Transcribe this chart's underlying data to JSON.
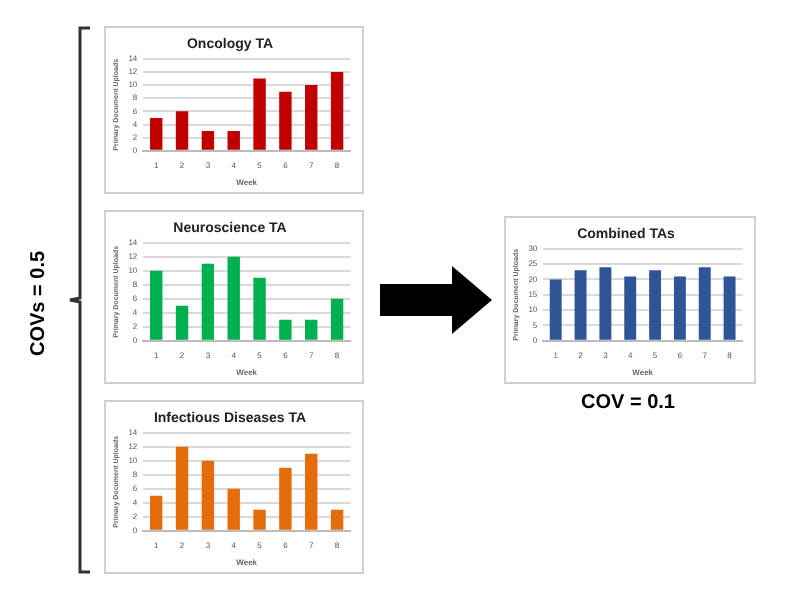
{
  "chart_data": [
    {
      "type": "bar",
      "title": "Oncology TA",
      "xlabel": "Week",
      "ylabel": "Primary Document Uploads",
      "categories": [
        "1",
        "2",
        "3",
        "4",
        "5",
        "6",
        "7",
        "8"
      ],
      "values": [
        5,
        6,
        3,
        3,
        11,
        9,
        10,
        12
      ],
      "color": "#c00000",
      "ylim": [
        0,
        14
      ],
      "yticks": [
        0,
        2,
        4,
        6,
        8,
        10,
        12,
        14
      ],
      "grid": "y",
      "annotations": [
        "COVs = 0.5"
      ]
    },
    {
      "type": "bar",
      "title": "Neuroscience TA",
      "xlabel": "Week",
      "ylabel": "Primary Document Uploads",
      "categories": [
        "1",
        "2",
        "3",
        "4",
        "5",
        "6",
        "7",
        "8"
      ],
      "values": [
        10,
        5,
        11,
        12,
        9,
        3,
        3,
        6
      ],
      "color": "#00b050",
      "ylim": [
        0,
        14
      ],
      "yticks": [
        0,
        2,
        4,
        6,
        8,
        10,
        12,
        14
      ],
      "grid": "y"
    },
    {
      "type": "bar",
      "title": "Infectious Diseases TA",
      "xlabel": "Week",
      "ylabel": "Primary Document Uploads",
      "categories": [
        "1",
        "2",
        "3",
        "4",
        "5",
        "6",
        "7",
        "8"
      ],
      "values": [
        5,
        12,
        10,
        6,
        3,
        9,
        11,
        3
      ],
      "color": "#e46c0a",
      "ylim": [
        0,
        14
      ],
      "yticks": [
        0,
        2,
        4,
        6,
        8,
        10,
        12,
        14
      ],
      "grid": "y"
    },
    {
      "type": "bar",
      "title": "Combined TAs",
      "xlabel": "Week",
      "ylabel": "Primary Document Uploads",
      "categories": [
        "1",
        "2",
        "3",
        "4",
        "5",
        "6",
        "7",
        "8"
      ],
      "values": [
        20,
        23,
        24,
        21,
        23,
        21,
        24,
        21
      ],
      "color": "#2f5597",
      "ylim": [
        0,
        30
      ],
      "yticks": [
        0,
        5,
        10,
        15,
        20,
        25,
        30
      ],
      "grid": "y",
      "annotations": [
        "COV = 0.1"
      ]
    }
  ]
}
